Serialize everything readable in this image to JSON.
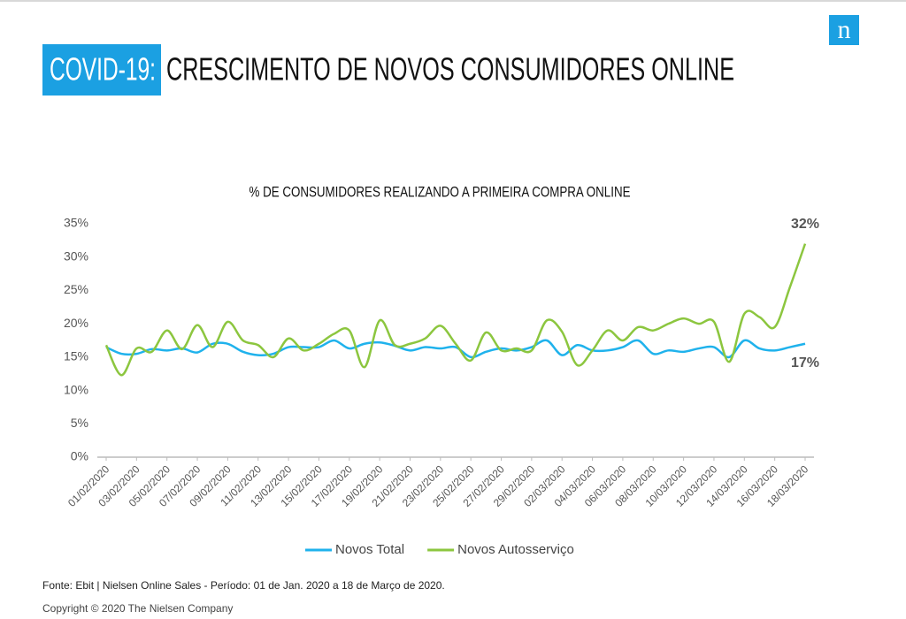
{
  "slide": {
    "title_highlight": "COVID-19:",
    "title": "CRESCIMENTO DE NOVOS CONSUMIDORES ONLINE",
    "logo": "n",
    "source": "Fonte: Ebit | Nielsen Online Sales - Período: 01 de Jan. 2020 a 18  de Março de 2020.",
    "copyright": "Copyright © 2020 The Nielsen Company"
  },
  "chart_data": {
    "type": "line",
    "title": "% DE CONSUMIDORES REALIZANDO A PRIMEIRA COMPRA ONLINE",
    "categories": [
      "01/02/2020",
      null,
      "03/02/2020",
      null,
      "05/02/2020",
      null,
      "07/02/2020",
      null,
      "09/02/2020",
      null,
      "11/02/2020",
      null,
      "13/02/2020",
      null,
      "15/02/2020",
      null,
      "17/02/2020",
      null,
      "19/02/2020",
      null,
      "21/02/2020",
      null,
      "23/02/2020",
      null,
      "25/02/2020",
      null,
      "27/02/2020",
      null,
      "29/02/2020",
      null,
      "02/03/2020",
      null,
      "04/03/2020",
      null,
      "06/03/2020",
      null,
      "08/03/2020",
      null,
      "10/03/2020",
      null,
      "12/03/2020",
      null,
      "14/03/2020",
      null,
      "16/03/2020",
      null,
      "18/03/2020"
    ],
    "series": [
      {
        "name": "Novos Total",
        "color": "#1fb2ec",
        "values": [
          16.5,
          15.5,
          15.5,
          16.2,
          16.0,
          16.3,
          15.7,
          17.0,
          17.0,
          15.8,
          15.3,
          15.5,
          16.5,
          16.5,
          16.5,
          17.5,
          16.3,
          17.0,
          17.2,
          16.7,
          16.0,
          16.5,
          16.3,
          16.5,
          15.0,
          15.8,
          16.3,
          16.0,
          16.5,
          17.5,
          15.3,
          16.8,
          16.0,
          16.0,
          16.5,
          17.5,
          15.5,
          16.0,
          15.8,
          16.3,
          16.5,
          15.0,
          17.5,
          16.3,
          16.0,
          16.5,
          17.0
        ],
        "value_labels": [
          null,
          null,
          null,
          null,
          null,
          null,
          null,
          null,
          null,
          null,
          null,
          null,
          null,
          null,
          null,
          null,
          null,
          null,
          null,
          null,
          null,
          null,
          null,
          null,
          null,
          null,
          null,
          null,
          null,
          null,
          null,
          null,
          null,
          null,
          null,
          null,
          null,
          null,
          null,
          null,
          null,
          null,
          null,
          null,
          null,
          null,
          "17%"
        ]
      },
      {
        "name": "Novos Autosserviço",
        "color": "#8cc63f",
        "values": [
          16.8,
          12.3,
          16.3,
          15.8,
          19.0,
          16.2,
          19.8,
          16.5,
          20.3,
          17.5,
          16.8,
          15.0,
          17.8,
          16.0,
          17.0,
          18.5,
          19.0,
          13.5,
          20.5,
          16.8,
          17.0,
          17.8,
          19.7,
          17.0,
          14.5,
          18.7,
          16.0,
          16.3,
          16.0,
          20.5,
          18.8,
          13.8,
          16.0,
          19.0,
          17.5,
          19.5,
          19.0,
          20.0,
          20.8,
          20.0,
          20.3,
          14.3,
          21.5,
          21.0,
          19.5,
          25.5,
          32.0
        ],
        "value_labels": [
          null,
          null,
          null,
          null,
          null,
          null,
          null,
          null,
          null,
          null,
          null,
          null,
          null,
          null,
          null,
          null,
          null,
          null,
          null,
          null,
          null,
          null,
          null,
          null,
          null,
          null,
          null,
          null,
          null,
          null,
          null,
          null,
          null,
          null,
          null,
          null,
          null,
          null,
          null,
          null,
          null,
          null,
          null,
          null,
          null,
          null,
          "32%"
        ]
      }
    ],
    "ylim": [
      0,
      35
    ],
    "yticks": [
      {
        "value": 0,
        "label": "0%"
      },
      {
        "value": 5,
        "label": "5%"
      },
      {
        "value": 10,
        "label": "10%"
      },
      {
        "value": 15,
        "label": "15%"
      },
      {
        "value": 20,
        "label": "20%"
      },
      {
        "value": 25,
        "label": "25%"
      },
      {
        "value": 30,
        "label": "30%"
      },
      {
        "value": 35,
        "label": "35%"
      }
    ],
    "grid": false,
    "legend": "bottom"
  }
}
